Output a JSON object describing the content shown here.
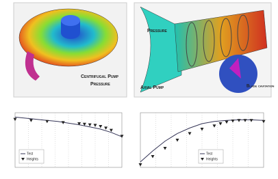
{
  "panels": [
    {
      "title": "Centrifugal Pump",
      "subtitle": "Pressure"
    },
    {
      "title": "Axial Pump",
      "label": "Pressure",
      "note": "Blade cavitation"
    }
  ],
  "chart_data": [
    {
      "type": "line",
      "xlim": [
        0,
        10
      ],
      "ylim": [
        0,
        100
      ],
      "grid": true,
      "legend": "lower-left",
      "series": [
        {
          "name": "Test",
          "color": "#333355",
          "marker": "none",
          "x": [
            0,
            1,
            2,
            3,
            4,
            5,
            6,
            7,
            8,
            9,
            10
          ],
          "values": [
            92,
            90,
            88,
            86,
            84,
            81,
            78,
            74,
            70,
            64,
            56
          ]
        },
        {
          "name": "Heights",
          "color": "#222222",
          "marker": "triangle",
          "x": [
            0,
            1.5,
            3,
            4.5,
            6,
            6.5,
            7,
            7.5,
            8,
            8.5,
            9,
            10
          ],
          "values": [
            88,
            86,
            84,
            82,
            80,
            79,
            78,
            77,
            75,
            72,
            68,
            57
          ]
        }
      ]
    },
    {
      "type": "line",
      "xlim": [
        0,
        10
      ],
      "ylim": [
        0,
        100
      ],
      "grid": true,
      "legend": "lower-right",
      "series": [
        {
          "name": "Test",
          "color": "#333355",
          "marker": "none",
          "x": [
            0,
            1,
            2,
            3,
            4,
            5,
            6,
            7,
            8,
            9,
            10
          ],
          "values": [
            10,
            30,
            48,
            62,
            72,
            80,
            84,
            86,
            87,
            87,
            86
          ]
        },
        {
          "name": "Heights",
          "color": "#222222",
          "marker": "triangle",
          "x": [
            0,
            1,
            2,
            3,
            4,
            5,
            6,
            6.5,
            7,
            7.5,
            8,
            8.5,
            9,
            10
          ],
          "values": [
            5,
            20,
            35,
            50,
            62,
            70,
            76,
            80,
            83,
            85,
            86,
            86,
            86,
            84
          ]
        }
      ]
    }
  ]
}
